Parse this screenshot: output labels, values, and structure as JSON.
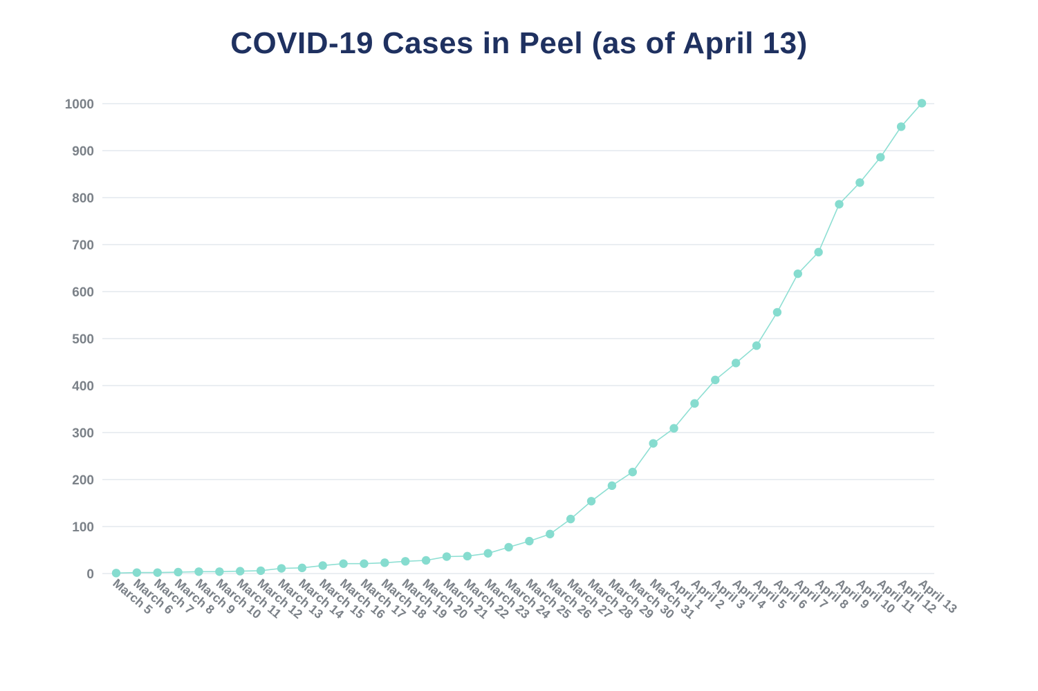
{
  "chart_data": {
    "type": "line",
    "title": "COVID-19 Cases in Peel (as of April 13)",
    "xlabel": "",
    "ylabel": "",
    "ylim": [
      0,
      1000
    ],
    "yticks": [
      0,
      100,
      200,
      300,
      400,
      500,
      600,
      700,
      800,
      900,
      1000
    ],
    "grid": true,
    "colors": {
      "line": "#8edfd3",
      "point": "#86dccf",
      "grid": "#dde4ea",
      "title": "#1f3160",
      "tick": "#7b8188"
    },
    "categories": [
      "March 5",
      "March 6",
      "March 7",
      "March 8",
      "March 9",
      "March 10",
      "March 11",
      "March 12",
      "March 13",
      "March 14",
      "March 15",
      "March 16",
      "March 17",
      "March 18",
      "March 19",
      "March 20",
      "March 21",
      "March 22",
      "March 23",
      "March 24",
      "March 25",
      "March 26",
      "March 27",
      "March 28",
      "March 29",
      "March 30",
      "March 31",
      "April 1",
      "April 2",
      "April 3",
      "April 4",
      "April 5",
      "April 6",
      "April 7",
      "April 8",
      "April 9",
      "April 10",
      "April 11",
      "April 12",
      "April 13"
    ],
    "series": [
      {
        "values": [
          1,
          2,
          2,
          3,
          4,
          4,
          5,
          6,
          11,
          12,
          17,
          21,
          21,
          23,
          26,
          28,
          36,
          37,
          43,
          56,
          69,
          84,
          116,
          154,
          187,
          216,
          277,
          309,
          362,
          412,
          448,
          485,
          556,
          638,
          684,
          786,
          832,
          886,
          951,
          1001
        ]
      }
    ]
  }
}
